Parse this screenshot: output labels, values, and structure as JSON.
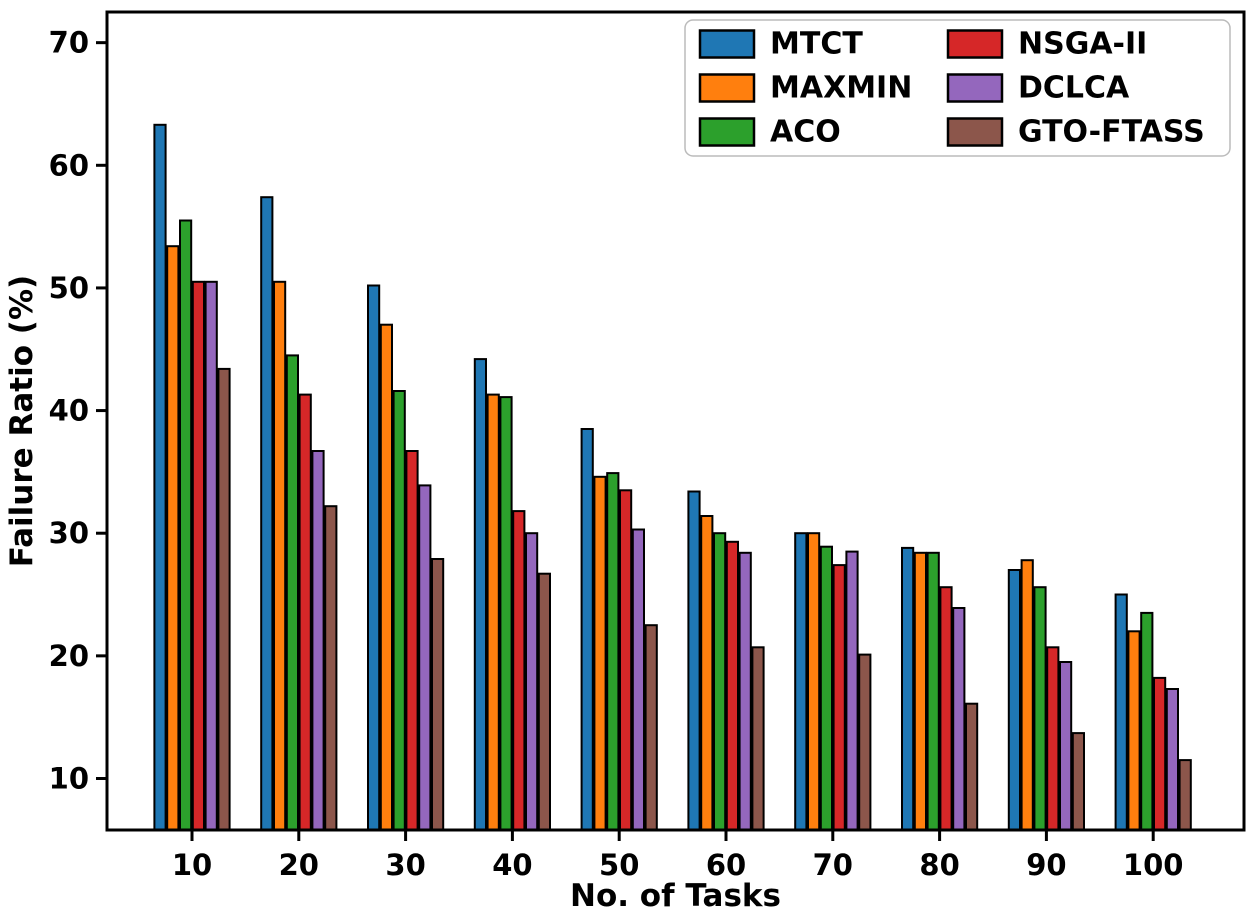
{
  "chart_data": {
    "type": "bar",
    "title": "",
    "xlabel": "No. of Tasks",
    "ylabel": "Failure Ratio (%)",
    "categories": [
      10,
      20,
      30,
      40,
      50,
      60,
      70,
      80,
      90,
      100
    ],
    "xtick_labels": [
      "10",
      "20",
      "30",
      "40",
      "50",
      "60",
      "70",
      "80",
      "90",
      "100"
    ],
    "yticks": [
      10,
      20,
      30,
      40,
      50,
      60,
      70
    ],
    "ytick_labels": [
      "10",
      "20",
      "30",
      "40",
      "50",
      "60",
      "70"
    ],
    "ylim": [
      5.8,
      72.5
    ],
    "grid": false,
    "legend_position": "upper right inside",
    "legend_columns": 2,
    "background_color": "#ffffff",
    "axis_color": "#000000",
    "bar_edge_color": "#000000",
    "legend_border_color": "#bbbbbb",
    "series": [
      {
        "name": "MTCT",
        "color": "#1f77b4",
        "values": [
          63.3,
          57.4,
          50.2,
          44.2,
          38.5,
          33.4,
          30.0,
          28.8,
          27.0,
          25.0
        ]
      },
      {
        "name": "MAXMIN",
        "color": "#ff7f0e",
        "values": [
          53.4,
          50.5,
          47.0,
          41.3,
          34.6,
          31.4,
          30.0,
          28.4,
          27.8,
          22.0
        ]
      },
      {
        "name": "ACO",
        "color": "#2ca02c",
        "values": [
          55.5,
          44.5,
          41.6,
          41.1,
          34.9,
          30.0,
          28.9,
          28.4,
          25.6,
          23.5
        ]
      },
      {
        "name": "NSGA-II",
        "color": "#d62728",
        "values": [
          50.5,
          41.3,
          36.7,
          31.8,
          33.5,
          29.3,
          27.4,
          25.6,
          20.7,
          18.2
        ]
      },
      {
        "name": "DCLCA",
        "color": "#9467bd",
        "values": [
          50.5,
          36.7,
          33.9,
          30.0,
          30.3,
          28.4,
          28.5,
          23.9,
          19.5,
          17.3
        ]
      },
      {
        "name": "GTO-FTASS",
        "color": "#8c564b",
        "values": [
          43.4,
          32.2,
          27.9,
          26.7,
          22.5,
          20.7,
          20.1,
          16.1,
          13.7,
          11.5
        ]
      }
    ]
  }
}
